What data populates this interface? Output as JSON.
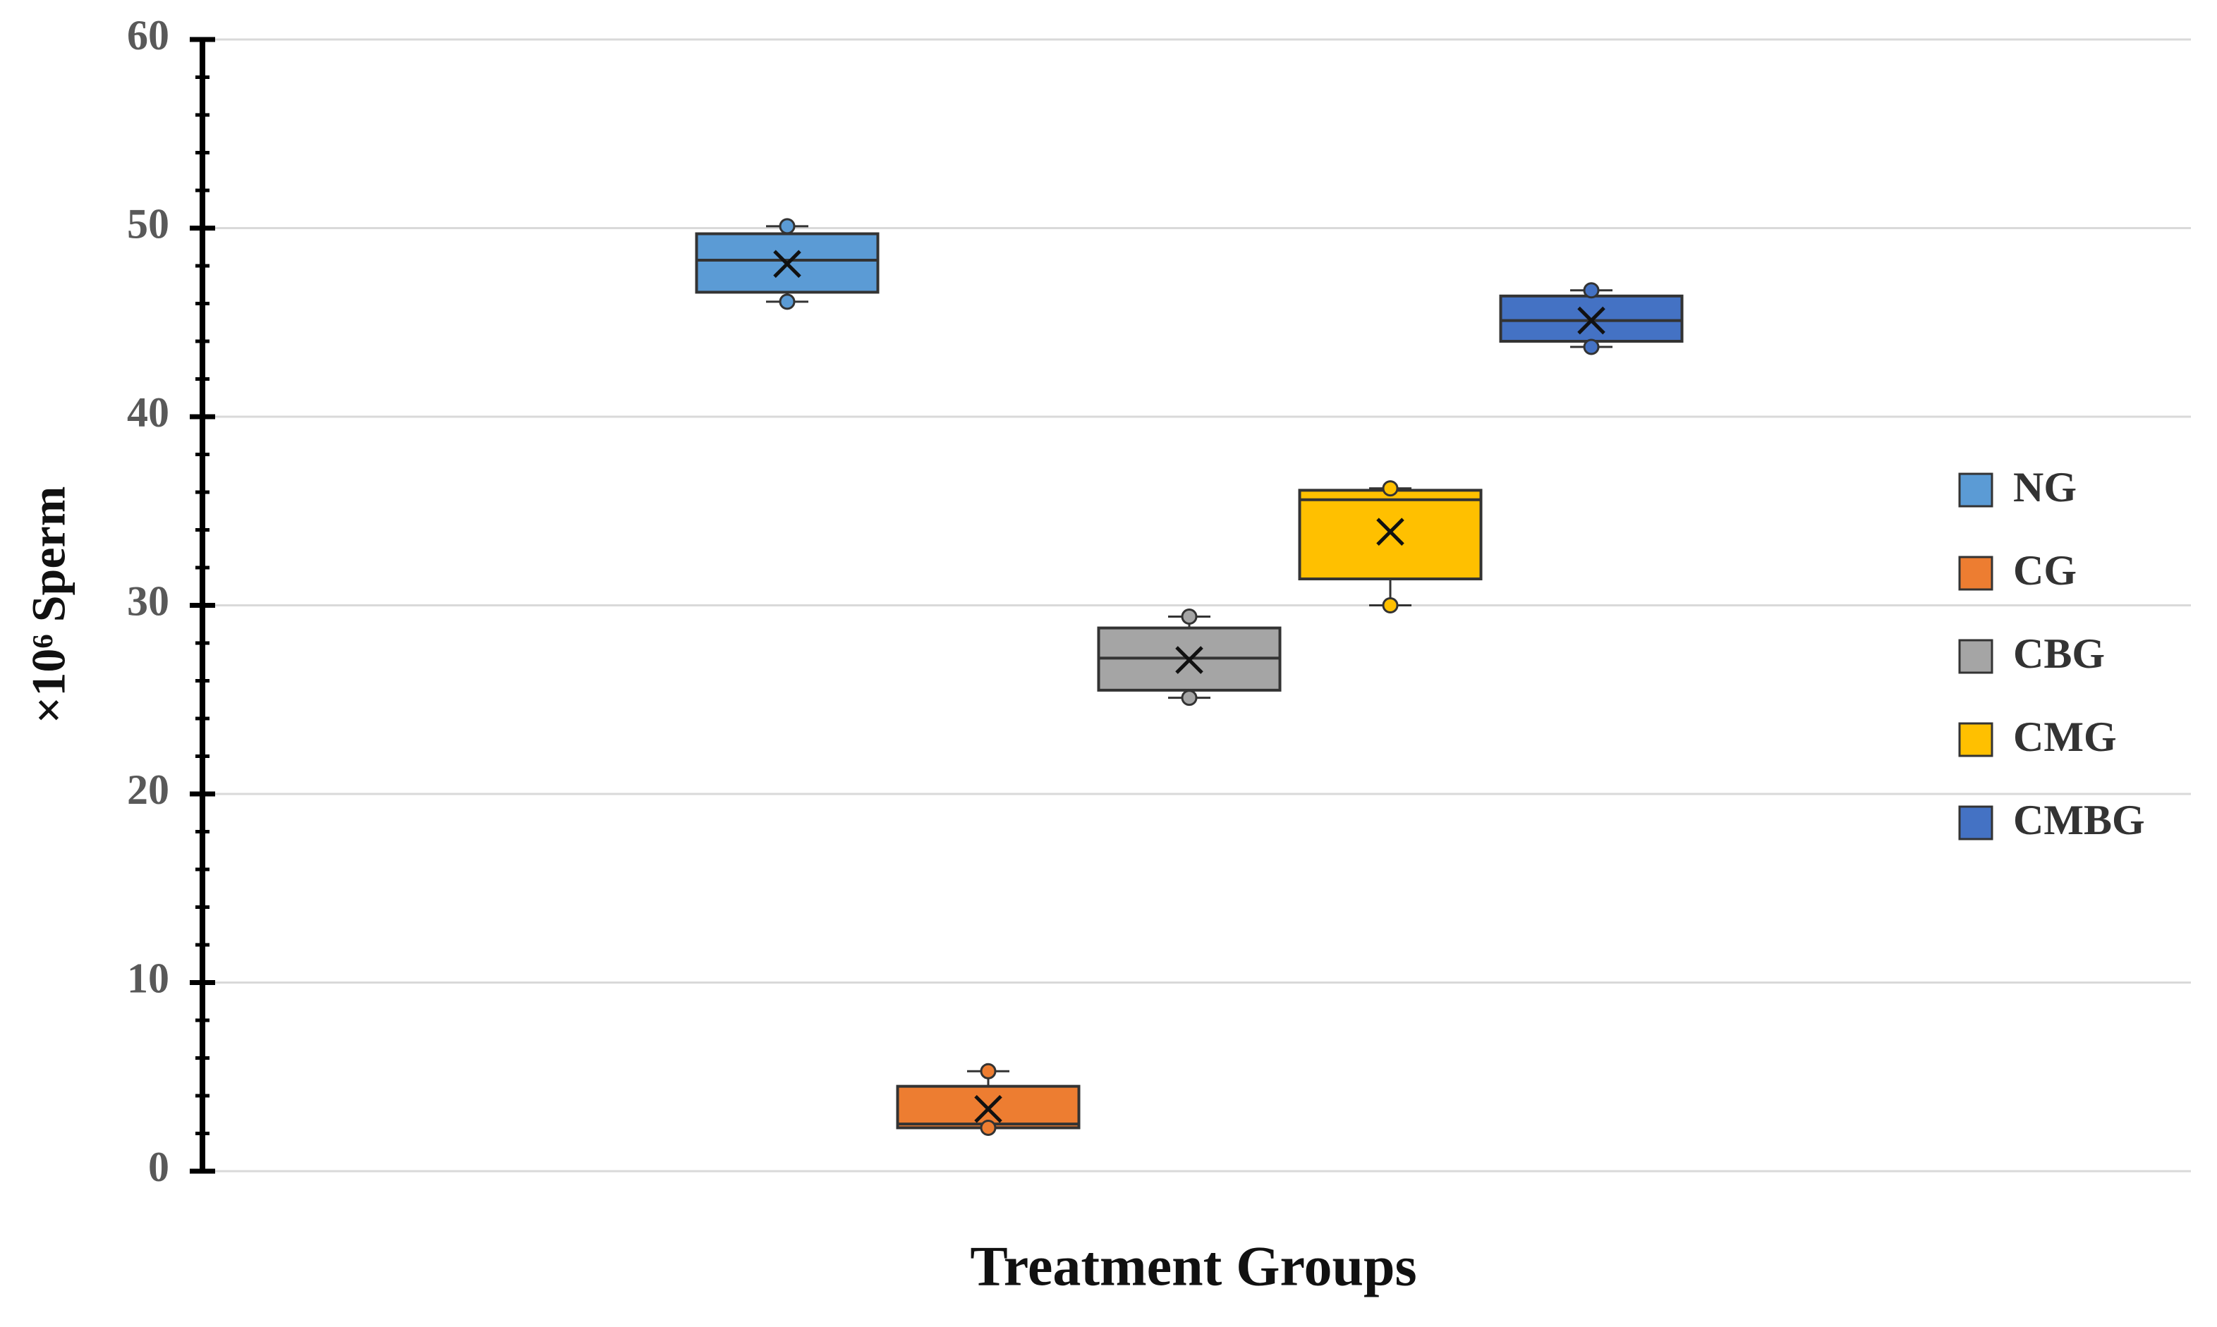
{
  "chart_data": {
    "type": "box",
    "x_label": "Treatment Groups",
    "y_label": "×10⁶ Sperm",
    "ylim": [
      0,
      60
    ],
    "yticks": [
      0,
      10,
      20,
      30,
      40,
      50,
      60
    ],
    "yminorticks": [
      2,
      4,
      6,
      8,
      12,
      14,
      16,
      18,
      22,
      24,
      26,
      28,
      32,
      34,
      36,
      38,
      42,
      44,
      46,
      48,
      52,
      54,
      56,
      58
    ],
    "grid": true,
    "legend": "right",
    "series": [
      {
        "name": "NG",
        "color": "#5b9bd5",
        "min": 46.1,
        "q1": 46.6,
        "median": 48.3,
        "q3": 49.7,
        "max": 50.1,
        "mean": 48.1
      },
      {
        "name": "CG",
        "color": "#ed7d31",
        "min": 2.3,
        "q1": 2.3,
        "median": 2.5,
        "q3": 4.5,
        "max": 5.3,
        "mean": 3.3
      },
      {
        "name": "CBG",
        "color": "#a5a5a5",
        "min": 25.1,
        "q1": 25.5,
        "median": 27.2,
        "q3": 28.8,
        "max": 29.4,
        "mean": 27.1
      },
      {
        "name": "CMG",
        "color": "#ffc000",
        "min": 30.0,
        "q1": 31.4,
        "median": 35.6,
        "q3": 36.1,
        "max": 36.2,
        "mean": 33.9
      },
      {
        "name": "CMBG",
        "color": "#4472c4",
        "min": 43.7,
        "q1": 44.0,
        "median": 45.1,
        "q3": 46.4,
        "max": 46.7,
        "mean": 45.1
      }
    ]
  }
}
